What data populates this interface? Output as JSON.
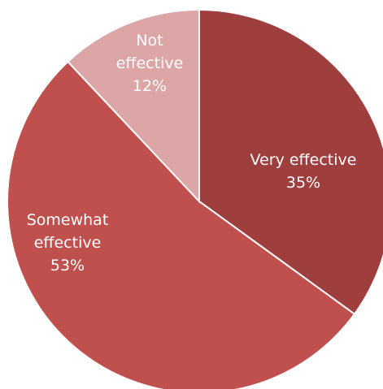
{
  "chart_data": {
    "type": "pie",
    "title": "",
    "slices": [
      {
        "key": "very",
        "label_lines": [
          "Very effective"
        ],
        "percent_label": "35%",
        "value": 35,
        "color": "#9e3e3d"
      },
      {
        "key": "somewhat",
        "label_lines": [
          "Somewhat",
          "effective"
        ],
        "percent_label": "53%",
        "value": 53,
        "color": "#c0504d"
      },
      {
        "key": "not",
        "label_lines": [
          "Not",
          "effective"
        ],
        "percent_label": "12%",
        "value": 12,
        "color": "#dba6a5"
      }
    ]
  }
}
